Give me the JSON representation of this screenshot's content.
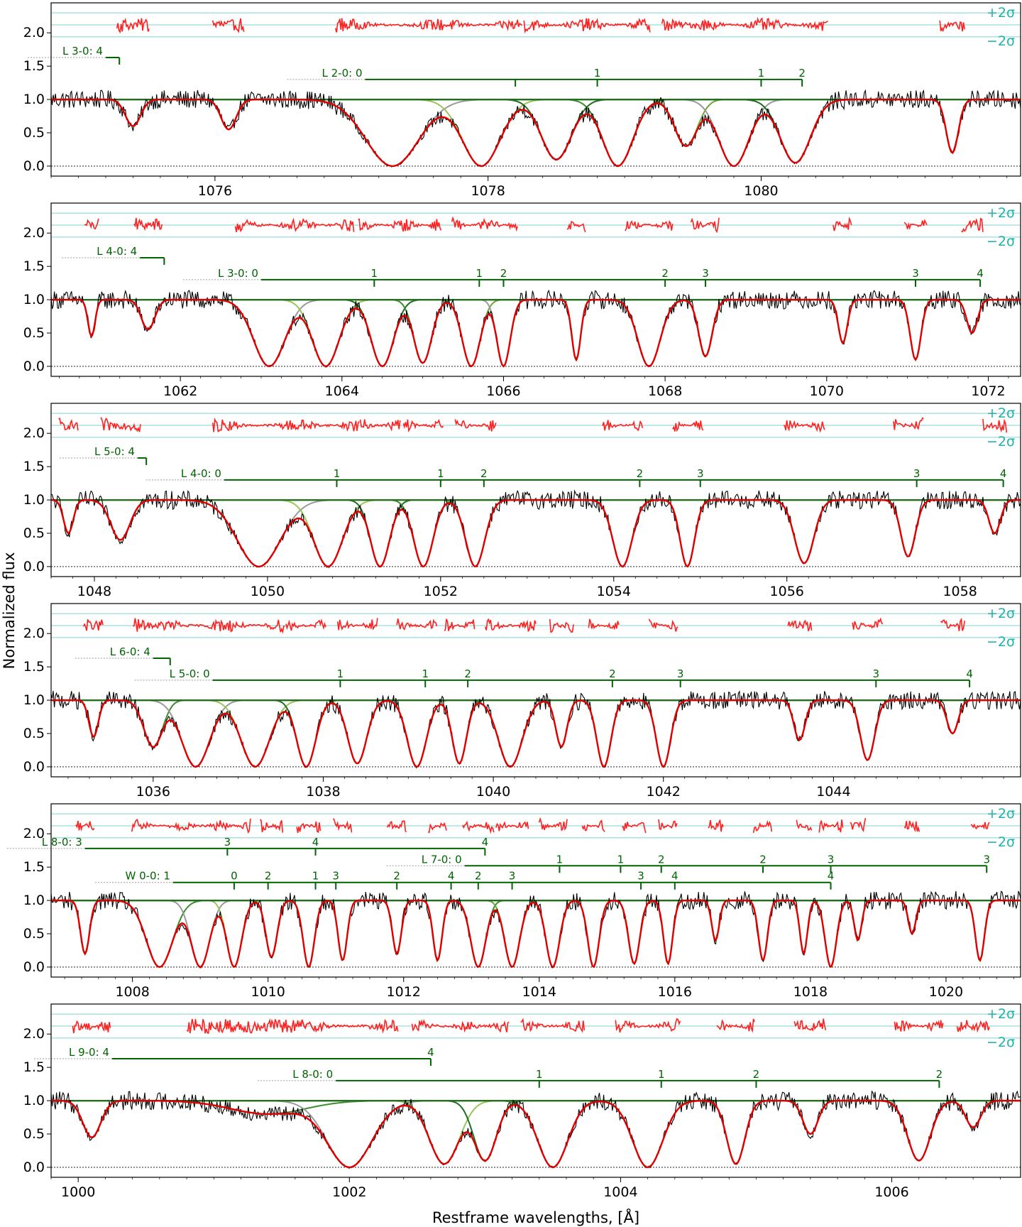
{
  "chart_data": {
    "type": "line",
    "xlabel": "Restframe wavelengths, [Å]",
    "ylabel": "Normalized flux",
    "colors": {
      "data": "#000000",
      "total_model": "#e00000",
      "residuals": "#ff2020",
      "components": [
        "#1f6e1f",
        "#3c8d2f",
        "#6aa63a",
        "#9bc45a"
      ],
      "unrelated": "#9a9a9a",
      "sigma_lines": "#7fd3d3",
      "sigma_text": "#20b2aa",
      "label_line": "#006400"
    },
    "sigma_labels": [
      "+2σ",
      "−2σ"
    ],
    "y_ticks": [
      "0.0",
      "0.5",
      "1.0",
      "1.5",
      "2.0"
    ],
    "panels": [
      {
        "xlim": [
          1074.8,
          1081.9
        ],
        "x_ticks": [
          1076,
          1078,
          1080
        ],
        "ylim": [
          -0.15,
          2.45
        ],
        "line_systems": [
          {
            "label": "L 3-0: 4",
            "y": 1.63,
            "x_start": 1075.2,
            "x_end": 1075.3,
            "marks": [
              {
                "x": 1075.3,
                "t": ""
              }
            ]
          },
          {
            "label": "L 2-0: 0",
            "y": 1.3,
            "x_start": 1077.1,
            "x_end": 1080.3,
            "marks": [
              {
                "x": 1078.2,
                "t": ""
              },
              {
                "x": 1078.8,
                "t": "1"
              },
              {
                "x": 1080.0,
                "t": "1"
              },
              {
                "x": 1080.3,
                "t": "2"
              }
            ]
          }
        ],
        "absorbers": [
          {
            "c": 1075.4,
            "d": 0.4,
            "w": 0.1
          },
          {
            "c": 1076.1,
            "d": 0.45,
            "w": 0.1
          },
          {
            "c": 1077.3,
            "d": 1.0,
            "w": 0.35
          },
          {
            "c": 1077.95,
            "d": 1.0,
            "w": 0.25
          },
          {
            "c": 1078.5,
            "d": 0.9,
            "w": 0.2
          },
          {
            "c": 1078.95,
            "d": 1.0,
            "w": 0.2
          },
          {
            "c": 1079.45,
            "d": 0.7,
            "w": 0.15
          },
          {
            "c": 1079.8,
            "d": 1.0,
            "w": 0.2
          },
          {
            "c": 1080.25,
            "d": 0.95,
            "w": 0.2
          },
          {
            "c": 1081.4,
            "d": 0.8,
            "w": 0.08
          }
        ]
      },
      {
        "xlim": [
          1060.4,
          1072.4
        ],
        "x_ticks": [
          1062,
          1064,
          1066,
          1068,
          1070,
          1072
        ],
        "ylim": [
          -0.15,
          2.45
        ],
        "line_systems": [
          {
            "label": "L 4-0: 4",
            "y": 1.63,
            "x_start": 1061.5,
            "x_end": 1061.8,
            "marks": [
              {
                "x": 1061.8,
                "t": ""
              }
            ]
          },
          {
            "label": "L 3-0: 0",
            "y": 1.3,
            "x_start": 1063.0,
            "x_end": 1071.9,
            "marks": [
              {
                "x": 1064.4,
                "t": "1"
              },
              {
                "x": 1065.7,
                "t": "1"
              },
              {
                "x": 1066.0,
                "t": "2"
              },
              {
                "x": 1068.0,
                "t": "2"
              },
              {
                "x": 1068.5,
                "t": "3"
              },
              {
                "x": 1071.1,
                "t": "3"
              },
              {
                "x": 1071.9,
                "t": "4"
              }
            ]
          }
        ],
        "absorbers": [
          {
            "c": 1060.9,
            "d": 0.55,
            "w": 0.08
          },
          {
            "c": 1061.6,
            "d": 0.45,
            "w": 0.15
          },
          {
            "c": 1063.1,
            "d": 1.0,
            "w": 0.35
          },
          {
            "c": 1063.8,
            "d": 1.0,
            "w": 0.3
          },
          {
            "c": 1064.5,
            "d": 1.0,
            "w": 0.25
          },
          {
            "c": 1065.0,
            "d": 0.95,
            "w": 0.2
          },
          {
            "c": 1065.6,
            "d": 1.0,
            "w": 0.2
          },
          {
            "c": 1066.0,
            "d": 1.0,
            "w": 0.15
          },
          {
            "c": 1066.9,
            "d": 0.9,
            "w": 0.1
          },
          {
            "c": 1067.8,
            "d": 1.0,
            "w": 0.25
          },
          {
            "c": 1068.5,
            "d": 0.85,
            "w": 0.15
          },
          {
            "c": 1070.2,
            "d": 0.65,
            "w": 0.1
          },
          {
            "c": 1071.1,
            "d": 0.9,
            "w": 0.12
          },
          {
            "c": 1071.8,
            "d": 0.5,
            "w": 0.12
          }
        ]
      },
      {
        "xlim": [
          1047.5,
          1058.7
        ],
        "x_ticks": [
          1048,
          1050,
          1052,
          1054,
          1056,
          1058
        ],
        "ylim": [
          -0.15,
          2.45
        ],
        "line_systems": [
          {
            "label": "L 5-0: 4",
            "y": 1.63,
            "x_start": 1048.5,
            "x_end": 1048.6,
            "marks": [
              {
                "x": 1048.6,
                "t": ""
              }
            ]
          },
          {
            "label": "L 4-0: 0",
            "y": 1.3,
            "x_start": 1049.5,
            "x_end": 1058.5,
            "marks": [
              {
                "x": 1050.8,
                "t": "1"
              },
              {
                "x": 1052.0,
                "t": "1"
              },
              {
                "x": 1052.5,
                "t": "2"
              },
              {
                "x": 1054.3,
                "t": "2"
              },
              {
                "x": 1055.0,
                "t": "3"
              },
              {
                "x": 1057.5,
                "t": "3"
              },
              {
                "x": 1058.5,
                "t": "4"
              }
            ]
          }
        ],
        "absorbers": [
          {
            "c": 1047.7,
            "d": 0.5,
            "w": 0.1
          },
          {
            "c": 1048.3,
            "d": 0.6,
            "w": 0.2
          },
          {
            "c": 1049.9,
            "d": 1.0,
            "w": 0.45
          },
          {
            "c": 1050.7,
            "d": 1.0,
            "w": 0.3
          },
          {
            "c": 1051.3,
            "d": 1.0,
            "w": 0.2
          },
          {
            "c": 1051.8,
            "d": 1.0,
            "w": 0.2
          },
          {
            "c": 1052.4,
            "d": 1.0,
            "w": 0.2
          },
          {
            "c": 1054.1,
            "d": 1.0,
            "w": 0.2
          },
          {
            "c": 1054.85,
            "d": 1.0,
            "w": 0.15
          },
          {
            "c": 1056.2,
            "d": 0.95,
            "w": 0.2
          },
          {
            "c": 1057.4,
            "d": 0.85,
            "w": 0.15
          },
          {
            "c": 1058.4,
            "d": 0.5,
            "w": 0.12
          }
        ]
      },
      {
        "xlim": [
          1034.8,
          1046.2
        ],
        "x_ticks": [
          1036,
          1038,
          1040,
          1042,
          1044
        ],
        "ylim": [
          -0.15,
          2.45
        ],
        "line_systems": [
          {
            "label": "L 6-0: 4",
            "y": 1.63,
            "x_start": 1036.0,
            "x_end": 1036.2,
            "marks": [
              {
                "x": 1036.2,
                "t": ""
              }
            ]
          },
          {
            "label": "L 5-0: 0",
            "y": 1.3,
            "x_start": 1036.7,
            "x_end": 1045.6,
            "marks": [
              {
                "x": 1038.2,
                "t": "1"
              },
              {
                "x": 1039.2,
                "t": "1"
              },
              {
                "x": 1039.7,
                "t": "2"
              },
              {
                "x": 1041.4,
                "t": "2"
              },
              {
                "x": 1042.2,
                "t": "3"
              },
              {
                "x": 1044.5,
                "t": "3"
              },
              {
                "x": 1045.6,
                "t": "4"
              }
            ]
          }
        ],
        "absorbers": [
          {
            "c": 1035.3,
            "d": 0.55,
            "w": 0.1
          },
          {
            "c": 1036.0,
            "d": 0.7,
            "w": 0.2
          },
          {
            "c": 1036.5,
            "d": 1.0,
            "w": 0.3
          },
          {
            "c": 1037.2,
            "d": 1.0,
            "w": 0.3
          },
          {
            "c": 1037.8,
            "d": 1.0,
            "w": 0.2
          },
          {
            "c": 1038.4,
            "d": 0.95,
            "w": 0.2
          },
          {
            "c": 1039.1,
            "d": 1.0,
            "w": 0.2
          },
          {
            "c": 1039.6,
            "d": 0.95,
            "w": 0.15
          },
          {
            "c": 1040.2,
            "d": 1.0,
            "w": 0.25
          },
          {
            "c": 1040.8,
            "d": 0.7,
            "w": 0.12
          },
          {
            "c": 1041.3,
            "d": 1.0,
            "w": 0.15
          },
          {
            "c": 1042.0,
            "d": 1.0,
            "w": 0.15
          },
          {
            "c": 1043.6,
            "d": 0.6,
            "w": 0.12
          },
          {
            "c": 1044.4,
            "d": 0.9,
            "w": 0.15
          },
          {
            "c": 1045.4,
            "d": 0.5,
            "w": 0.12
          }
        ]
      },
      {
        "xlim": [
          1006.8,
          1021.1
        ],
        "x_ticks": [
          1008,
          1010,
          1012,
          1014,
          1016,
          1018,
          1020
        ],
        "ylim": [
          -0.15,
          2.45
        ],
        "line_systems": [
          {
            "label": "L 8-0: 3",
            "y": 1.78,
            "x_start": 1007.3,
            "x_end": 1013.2,
            "marks": [
              {
                "x": 1009.4,
                "t": "3"
              },
              {
                "x": 1010.7,
                "t": "4"
              },
              {
                "x": 1013.2,
                "t": "4"
              }
            ]
          },
          {
            "label": "L 7-0: 0",
            "y": 1.52,
            "x_start": 1012.9,
            "x_end": 1020.6,
            "marks": [
              {
                "x": 1014.3,
                "t": "1"
              },
              {
                "x": 1015.2,
                "t": "1"
              },
              {
                "x": 1015.8,
                "t": "2"
              },
              {
                "x": 1017.3,
                "t": "2"
              },
              {
                "x": 1018.3,
                "t": "3"
              },
              {
                "x": 1020.6,
                "t": "3"
              }
            ]
          },
          {
            "label": "W 0-0: 1",
            "y": 1.27,
            "x_start": 1008.6,
            "x_end": 1018.3,
            "marks": [
              {
                "x": 1009.5,
                "t": "0"
              },
              {
                "x": 1010.0,
                "t": "2"
              },
              {
                "x": 1010.7,
                "t": "1"
              },
              {
                "x": 1011.0,
                "t": "3"
              },
              {
                "x": 1011.9,
                "t": "2"
              },
              {
                "x": 1012.7,
                "t": "4"
              },
              {
                "x": 1013.1,
                "t": "2"
              },
              {
                "x": 1013.6,
                "t": "3"
              },
              {
                "x": 1015.5,
                "t": "3"
              },
              {
                "x": 1016.0,
                "t": "4"
              },
              {
                "x": 1018.3,
                "t": "4"
              }
            ]
          }
        ],
        "absorbers": [
          {
            "c": 1007.3,
            "d": 0.8,
            "w": 0.12
          },
          {
            "c": 1008.4,
            "d": 1.0,
            "w": 0.35
          },
          {
            "c": 1009.0,
            "d": 1.0,
            "w": 0.25
          },
          {
            "c": 1009.5,
            "d": 1.0,
            "w": 0.2
          },
          {
            "c": 1010.05,
            "d": 0.85,
            "w": 0.15
          },
          {
            "c": 1010.6,
            "d": 1.0,
            "w": 0.15
          },
          {
            "c": 1011.1,
            "d": 0.9,
            "w": 0.12
          },
          {
            "c": 1011.9,
            "d": 0.8,
            "w": 0.12
          },
          {
            "c": 1012.5,
            "d": 0.9,
            "w": 0.12
          },
          {
            "c": 1013.1,
            "d": 1.0,
            "w": 0.2
          },
          {
            "c": 1013.6,
            "d": 1.0,
            "w": 0.2
          },
          {
            "c": 1014.2,
            "d": 1.0,
            "w": 0.18
          },
          {
            "c": 1014.8,
            "d": 1.0,
            "w": 0.15
          },
          {
            "c": 1015.4,
            "d": 0.95,
            "w": 0.15
          },
          {
            "c": 1015.9,
            "d": 0.95,
            "w": 0.12
          },
          {
            "c": 1016.6,
            "d": 0.6,
            "w": 0.1
          },
          {
            "c": 1017.3,
            "d": 0.9,
            "w": 0.12
          },
          {
            "c": 1017.9,
            "d": 0.8,
            "w": 0.1
          },
          {
            "c": 1018.3,
            "d": 1.0,
            "w": 0.15
          },
          {
            "c": 1018.7,
            "d": 0.6,
            "w": 0.1
          },
          {
            "c": 1019.5,
            "d": 0.5,
            "w": 0.1
          },
          {
            "c": 1020.5,
            "d": 0.9,
            "w": 0.12
          }
        ]
      },
      {
        "xlim": [
          999.8,
          1006.95
        ],
        "x_ticks": [
          1000,
          1002,
          1004,
          1006
        ],
        "ylim": [
          -0.15,
          2.45
        ],
        "line_systems": [
          {
            "label": "L 9-0: 4",
            "y": 1.63,
            "x_start": 1000.25,
            "x_end": 1002.6,
            "marks": [
              {
                "x": 1002.6,
                "t": "4"
              }
            ]
          },
          {
            "label": "L 8-0: 0",
            "y": 1.3,
            "x_start": 1001.9,
            "x_end": 1006.35,
            "marks": [
              {
                "x": 1003.4,
                "t": "1"
              },
              {
                "x": 1004.3,
                "t": "1"
              },
              {
                "x": 1005.0,
                "t": "2"
              },
              {
                "x": 1006.35,
                "t": "2"
              }
            ]
          }
        ],
        "absorbers": [
          {
            "c": 1000.1,
            "d": 0.55,
            "w": 0.12
          },
          {
            "c": 1001.4,
            "d": 0.2,
            "w": 0.5
          },
          {
            "c": 1002.0,
            "d": 1.0,
            "w": 0.3
          },
          {
            "c": 1002.7,
            "d": 0.95,
            "w": 0.2
          },
          {
            "c": 1003.0,
            "d": 0.9,
            "w": 0.15
          },
          {
            "c": 1003.5,
            "d": 1.0,
            "w": 0.2
          },
          {
            "c": 1004.2,
            "d": 1.0,
            "w": 0.2
          },
          {
            "c": 1004.85,
            "d": 0.95,
            "w": 0.12
          },
          {
            "c": 1005.4,
            "d": 0.5,
            "w": 0.1
          },
          {
            "c": 1006.2,
            "d": 0.9,
            "w": 0.15
          },
          {
            "c": 1006.6,
            "d": 0.4,
            "w": 0.1
          }
        ]
      }
    ]
  }
}
